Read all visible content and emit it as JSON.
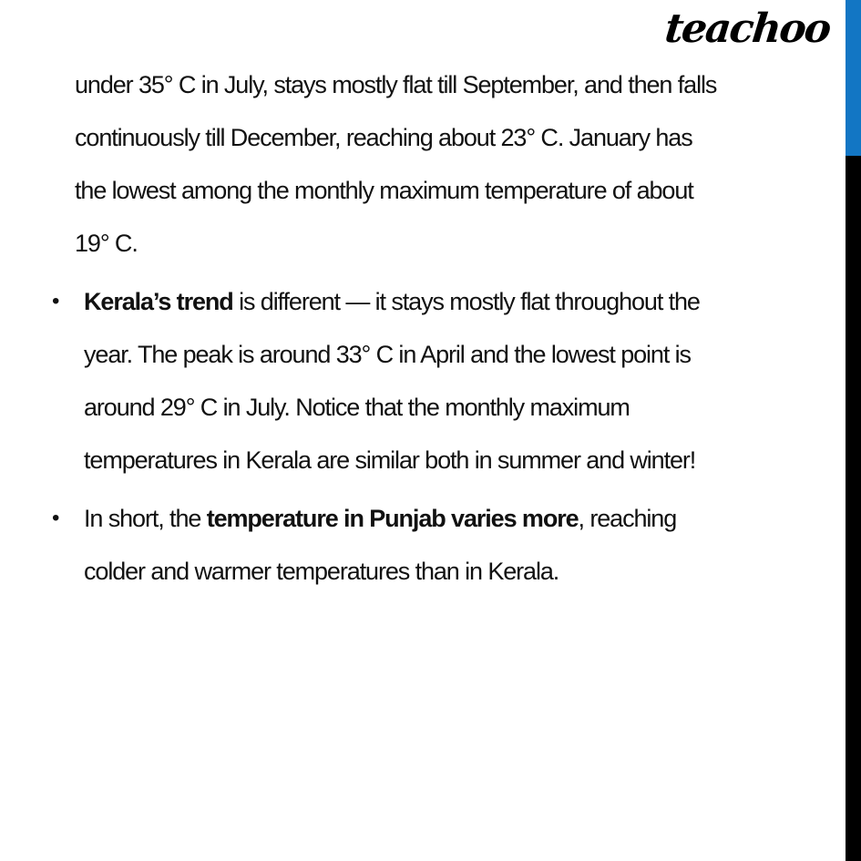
{
  "logo": {
    "text": "teachoo"
  },
  "colors": {
    "accent_blue": "#1276c4",
    "bar_black": "#000000",
    "text_color": "#111111"
  },
  "body": {
    "continuation": {
      "line1": "under 35° C in July, stays mostly flat till September, and then falls",
      "line2": "continuously till December, reaching about 23° C. January has",
      "line3": "the lowest among the monthly maximum temperature of about",
      "line4": "19° C."
    },
    "kerala": {
      "bullet": "•",
      "line1_bold": "Kerala’s trend",
      "line1_rest": " is different — it stays mostly flat throughout the",
      "line2": "year. The peak is around 33° C in April and the lowest point is",
      "line3": "around 29° C in July. Notice that the monthly maximum",
      "line4": "temperatures in Kerala are similar both in summer and winter!"
    },
    "punjab": {
      "bullet": "•",
      "line1_pre": "In short, the ",
      "line1_bold": "temperature in Punjab varies more",
      "line1_post": ", reaching",
      "line2": "colder and warmer temperatures than in Kerala."
    }
  }
}
